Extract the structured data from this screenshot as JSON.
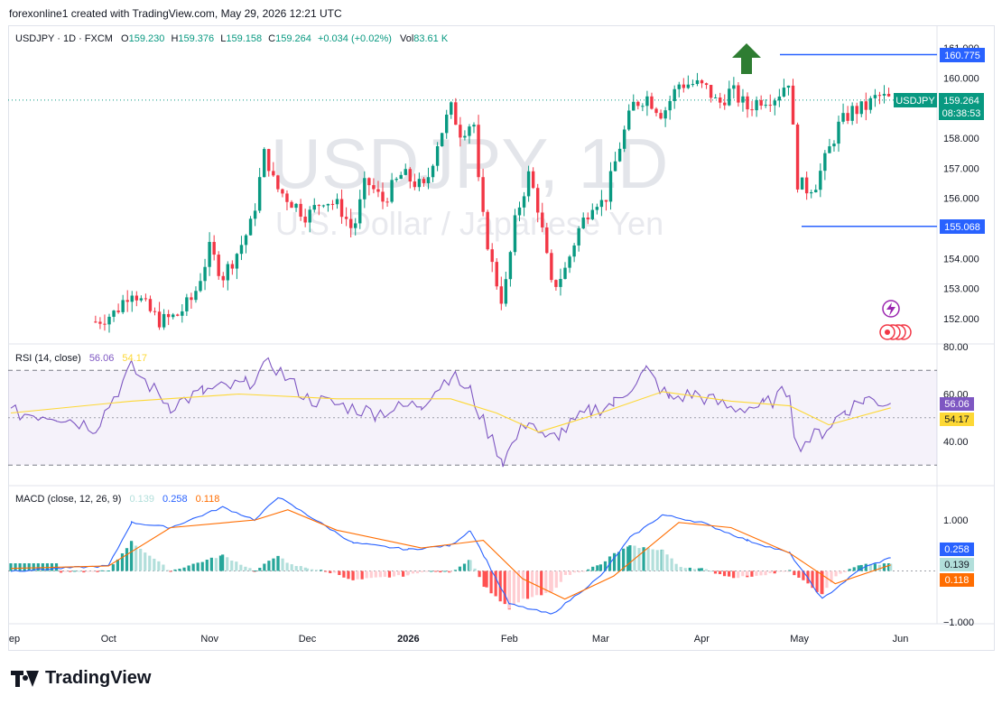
{
  "header": {
    "attribution": "forexonline1 created with TradingView.com, May 29, 2026 12:21 UTC"
  },
  "legend": {
    "symbol": "USDJPY · 1D · FXCM",
    "o_label": "O",
    "o_value": "159.230",
    "h_label": "H",
    "h_value": "159.376",
    "l_label": "L",
    "l_value": "159.158",
    "c_label": "C",
    "c_value": "159.264",
    "change": "+0.034 (+0.02%)",
    "vol_label": "Vol",
    "vol_value": "83.61 K"
  },
  "watermark": {
    "line1": "USDJPY, 1D",
    "line2": "U.S. Dollar / Japanese Yen"
  },
  "price_axis": {
    "ticks": [
      "161.000",
      "160.000",
      "159.000",
      "158.000",
      "157.000",
      "156.000",
      "155.000",
      "154.000",
      "153.000",
      "152.000"
    ],
    "current_symbol": "USDJPY",
    "current_price": "159.264",
    "countdown": "08:38:53",
    "high_label": "160.775",
    "low_label": "155.068"
  },
  "rsi": {
    "title": "RSI (14, close)",
    "value1": "56.06",
    "value2": "54.17",
    "ticks": [
      "80.00",
      "60.00",
      "40.00"
    ]
  },
  "macd": {
    "title": "MACD (close, 12, 26, 9)",
    "hist_value": "0.139",
    "macd_value": "0.258",
    "signal_value": "0.118",
    "ticks": [
      "1.000",
      "−1.000"
    ]
  },
  "time_axis": {
    "labels": [
      "ep",
      "Oct",
      "Nov",
      "Dec",
      "2026",
      "Feb",
      "Mar",
      "Apr",
      "May",
      "Jun"
    ]
  },
  "branding": {
    "name": "TradingView"
  },
  "colors": {
    "up": "#089981",
    "down": "#f23645",
    "rsi": "#7e57c2",
    "rsi_ma": "#fdd835",
    "macd": "#2962ff",
    "signal": "#ff6d00",
    "level": "#2962ff",
    "arrow": "#2e7d32"
  },
  "chart_data": {
    "type": "candlestick",
    "symbol": "USDJPY",
    "timeframe": "1D",
    "price_range": [
      151.8,
      161.2
    ],
    "anchors": [
      {
        "date": "2025-09-27",
        "close": 151.9
      },
      {
        "date": "2025-10-03",
        "close": 152.2
      },
      {
        "date": "2025-10-08",
        "close": 153.0
      },
      {
        "date": "2025-10-13",
        "close": 152.3
      },
      {
        "date": "2025-10-17",
        "close": 151.9
      },
      {
        "date": "2025-10-22",
        "close": 152.1
      },
      {
        "date": "2025-10-27",
        "close": 152.7
      },
      {
        "date": "2025-11-01",
        "close": 154.3
      },
      {
        "date": "2025-11-05",
        "close": 153.4
      },
      {
        "date": "2025-11-10",
        "close": 154.3
      },
      {
        "date": "2025-11-14",
        "close": 155.2
      },
      {
        "date": "2025-11-18",
        "close": 157.6
      },
      {
        "date": "2025-11-21",
        "close": 156.4
      },
      {
        "date": "2025-11-26",
        "close": 155.9
      },
      {
        "date": "2025-12-01",
        "close": 155.4
      },
      {
        "date": "2025-12-06",
        "close": 156.0
      },
      {
        "date": "2025-12-11",
        "close": 155.7
      },
      {
        "date": "2025-12-15",
        "close": 154.9
      },
      {
        "date": "2025-12-19",
        "close": 156.6
      },
      {
        "date": "2025-12-24",
        "close": 155.9
      },
      {
        "date": "2025-12-30",
        "close": 156.8
      },
      {
        "date": "2026-01-06",
        "close": 156.3
      },
      {
        "date": "2026-01-10",
        "close": 157.9
      },
      {
        "date": "2026-01-14",
        "close": 159.0
      },
      {
        "date": "2026-01-17",
        "close": 158.2
      },
      {
        "date": "2026-01-21",
        "close": 158.6
      },
      {
        "date": "2026-01-23",
        "close": 155.8
      },
      {
        "date": "2026-01-27",
        "close": 153.6
      },
      {
        "date": "2026-01-30",
        "close": 152.5
      },
      {
        "date": "2026-02-03",
        "close": 155.4
      },
      {
        "date": "2026-02-07",
        "close": 156.8
      },
      {
        "date": "2026-02-10",
        "close": 155.6
      },
      {
        "date": "2026-02-14",
        "close": 153.0
      },
      {
        "date": "2026-02-18",
        "close": 153.6
      },
      {
        "date": "2026-02-22",
        "close": 154.9
      },
      {
        "date": "2026-02-27",
        "close": 156.0
      },
      {
        "date": "2026-03-02",
        "close": 155.8
      },
      {
        "date": "2026-03-07",
        "close": 157.8
      },
      {
        "date": "2026-03-11",
        "close": 159.1
      },
      {
        "date": "2026-03-15",
        "close": 159.4
      },
      {
        "date": "2026-03-20",
        "close": 158.8
      },
      {
        "date": "2026-03-25",
        "close": 159.8
      },
      {
        "date": "2026-03-30",
        "close": 159.8
      },
      {
        "date": "2026-04-03",
        "close": 159.6
      },
      {
        "date": "2026-04-06",
        "close": 159.1
      },
      {
        "date": "2026-04-10",
        "close": 159.6
      },
      {
        "date": "2026-04-15",
        "close": 159.0
      },
      {
        "date": "2026-04-19",
        "close": 159.3
      },
      {
        "date": "2026-04-24",
        "close": 159.4
      },
      {
        "date": "2026-04-28",
        "close": 160.0
      },
      {
        "date": "2026-04-30",
        "close": 156.6
      },
      {
        "date": "2026-05-03",
        "close": 156.3
      },
      {
        "date": "2026-05-06",
        "close": 156.5
      },
      {
        "date": "2026-05-09",
        "close": 157.3
      },
      {
        "date": "2026-05-13",
        "close": 158.4
      },
      {
        "date": "2026-05-17",
        "close": 158.9
      },
      {
        "date": "2026-05-21",
        "close": 159.0
      },
      {
        "date": "2026-05-25",
        "close": 159.4
      },
      {
        "date": "2026-05-29",
        "close": 159.264
      }
    ],
    "levels": [
      {
        "label": "160.775",
        "value": 160.775
      },
      {
        "label": "155.068",
        "value": 155.068
      }
    ],
    "rsi_points": [
      [
        "2025-09-01",
        52
      ],
      [
        "2025-09-15",
        51
      ],
      [
        "2025-09-27",
        46
      ],
      [
        "2025-10-08",
        71
      ],
      [
        "2025-10-20",
        55
      ],
      [
        "2025-10-30",
        61
      ],
      [
        "2025-11-12",
        64
      ],
      [
        "2025-11-20",
        73
      ],
      [
        "2025-12-01",
        58
      ],
      [
        "2025-12-12",
        55
      ],
      [
        "2025-12-22",
        52
      ],
      [
        "2026-01-05",
        56
      ],
      [
        "2026-01-14",
        68
      ],
      [
        "2026-01-20",
        61
      ],
      [
        "2026-01-24",
        48
      ],
      [
        "2026-01-30",
        32
      ],
      [
        "2026-02-07",
        50
      ],
      [
        "2026-02-12",
        40
      ],
      [
        "2026-02-17",
        44
      ],
      [
        "2026-02-26",
        53
      ],
      [
        "2026-03-05",
        56
      ],
      [
        "2026-03-15",
        70
      ],
      [
        "2026-03-22",
        58
      ],
      [
        "2026-03-30",
        60
      ],
      [
        "2026-04-10",
        54
      ],
      [
        "2026-04-20",
        55
      ],
      [
        "2026-04-28",
        62
      ],
      [
        "2026-04-30",
        38
      ],
      [
        "2026-05-08",
        44
      ],
      [
        "2026-05-15",
        53
      ],
      [
        "2026-05-21",
        58
      ],
      [
        "2026-05-29",
        56.06
      ]
    ],
    "rsi_ma_points": [
      [
        "2025-09-01",
        52
      ],
      [
        "2025-10-08",
        57
      ],
      [
        "2025-11-10",
        60
      ],
      [
        "2025-12-10",
        58
      ],
      [
        "2026-01-14",
        58
      ],
      [
        "2026-01-28",
        52
      ],
      [
        "2026-02-10",
        44
      ],
      [
        "2026-03-01",
        52
      ],
      [
        "2026-03-20",
        61
      ],
      [
        "2026-04-10",
        57
      ],
      [
        "2026-04-28",
        55
      ],
      [
        "2026-05-10",
        47
      ],
      [
        "2026-05-29",
        54.17
      ]
    ],
    "macd_points": [
      [
        "2025-09-01",
        0.0
      ],
      [
        "2025-10-01",
        0.1
      ],
      [
        "2025-10-08",
        0.95
      ],
      [
        "2025-10-20",
        0.85
      ],
      [
        "2025-11-05",
        1.25
      ],
      [
        "2025-11-15",
        1.0
      ],
      [
        "2025-11-22",
        1.45
      ],
      [
        "2025-12-01",
        1.1
      ],
      [
        "2025-12-15",
        0.55
      ],
      [
        "2026-01-01",
        0.42
      ],
      [
        "2026-01-14",
        0.5
      ],
      [
        "2026-01-20",
        0.8
      ],
      [
        "2026-01-25",
        0.2
      ],
      [
        "2026-02-01",
        -0.65
      ],
      [
        "2026-02-14",
        -0.85
      ],
      [
        "2026-03-01",
        -0.1
      ],
      [
        "2026-03-10",
        0.65
      ],
      [
        "2026-03-20",
        1.1
      ],
      [
        "2026-04-01",
        0.95
      ],
      [
        "2026-04-15",
        0.6
      ],
      [
        "2026-04-28",
        0.35
      ],
      [
        "2026-05-08",
        -0.55
      ],
      [
        "2026-05-20",
        0.05
      ],
      [
        "2026-05-29",
        0.258
      ]
    ],
    "signal_points": [
      [
        "2025-09-01",
        0.05
      ],
      [
        "2025-10-01",
        0.1
      ],
      [
        "2025-10-20",
        0.85
      ],
      [
        "2025-11-15",
        1.0
      ],
      [
        "2025-11-25",
        1.2
      ],
      [
        "2025-12-10",
        0.8
      ],
      [
        "2026-01-05",
        0.45
      ],
      [
        "2026-01-24",
        0.6
      ],
      [
        "2026-02-05",
        -0.15
      ],
      [
        "2026-02-18",
        -0.55
      ],
      [
        "2026-03-05",
        -0.1
      ],
      [
        "2026-03-25",
        0.95
      ],
      [
        "2026-04-10",
        0.85
      ],
      [
        "2026-04-28",
        0.35
      ],
      [
        "2026-05-12",
        -0.25
      ],
      [
        "2026-05-29",
        0.118
      ]
    ]
  }
}
